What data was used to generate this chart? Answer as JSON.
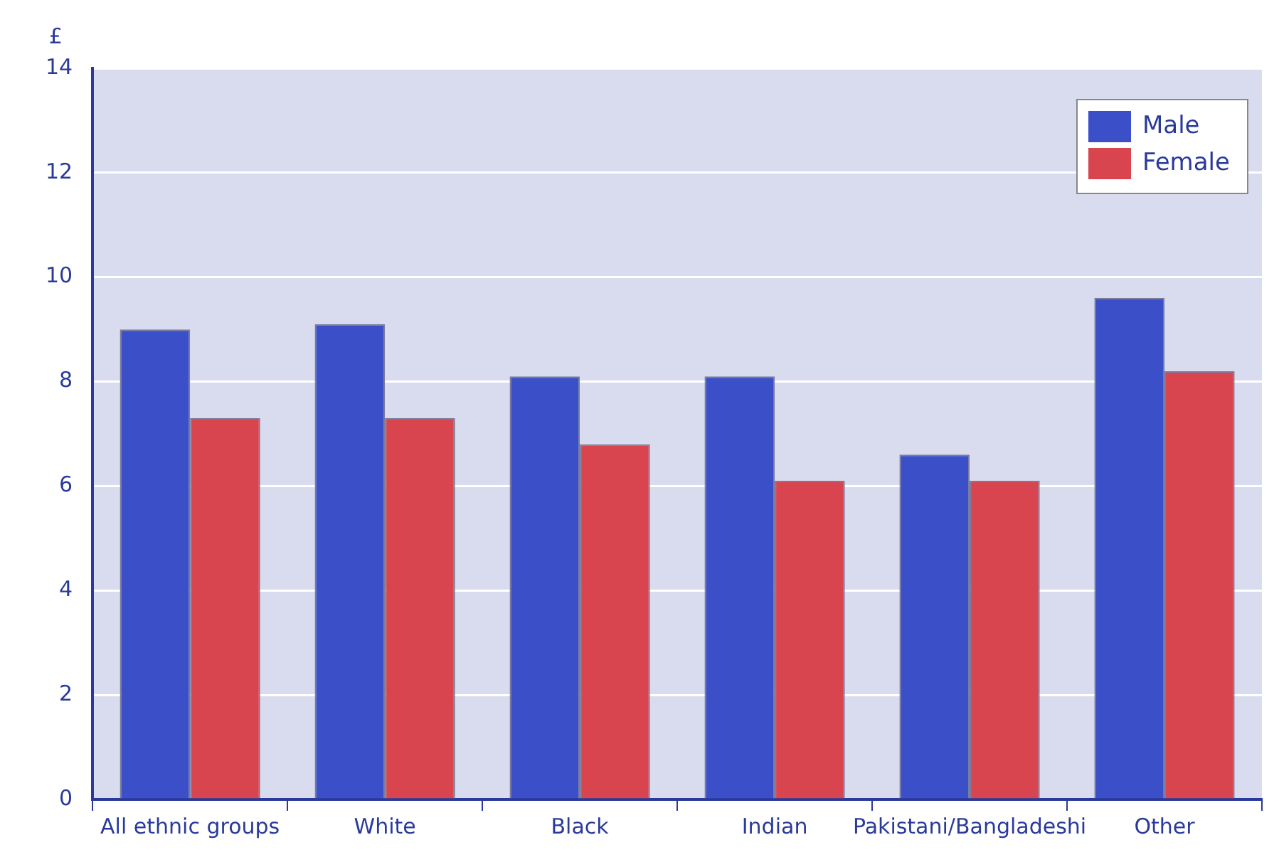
{
  "chart_data": {
    "type": "bar",
    "ylabel": "£",
    "categories": [
      "All ethnic groups",
      "White",
      "Black",
      "Indian",
      "Pakistani/Bangladeshi",
      "Other"
    ],
    "series": [
      {
        "name": "Male",
        "color": "#3a4fc8",
        "values": [
          9.0,
          9.1,
          8.1,
          8.1,
          6.6,
          9.6
        ]
      },
      {
        "name": "Female",
        "color": "#d9454f",
        "values": [
          7.3,
          7.3,
          6.8,
          6.1,
          6.1,
          8.2
        ]
      }
    ],
    "ylim": [
      0,
      14
    ],
    "yticks": [
      0,
      2,
      4,
      6,
      8,
      10,
      12,
      14
    ],
    "grid": "y",
    "legend": "top right"
  }
}
